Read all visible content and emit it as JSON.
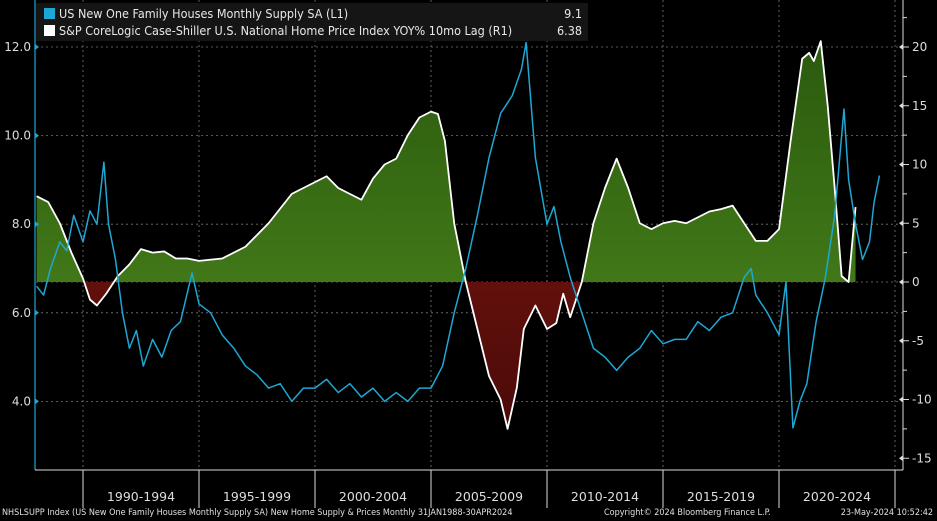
{
  "chart_data": {
    "type": "line",
    "title": "",
    "legend_placement": "top-left",
    "x_tick_labels": [
      "1990-1994",
      "1995-1999",
      "2000-2004",
      "2005-2009",
      "2010-2014",
      "2015-2019",
      "2020-2024"
    ],
    "left_axis": {
      "ticks": [
        "12.0",
        "10.0",
        "8.0",
        "6.0",
        "4.0"
      ],
      "tick_values": [
        12,
        10,
        8,
        6,
        4
      ],
      "range": [
        2.8,
        12.8
      ]
    },
    "right_axis": {
      "ticks": [
        "20",
        "15",
        "10",
        "5",
        "0",
        "-5",
        "-10",
        "-15"
      ],
      "tick_values": [
        20,
        15,
        10,
        5,
        0,
        -5,
        -10,
        -15
      ],
      "range": [
        -16,
        23
      ]
    },
    "series": [
      {
        "name": "US New One Family Houses Monthly Supply SA (L1)",
        "last_value": "9.1",
        "axis": "left",
        "color": "#1ea7d4",
        "x": [
          1988,
          1988.3,
          1988.6,
          1989,
          1989.3,
          1989.6,
          1990,
          1990.3,
          1990.6,
          1990.9,
          1991.1,
          1991.4,
          1991.7,
          1992,
          1992.3,
          1992.6,
          1993,
          1993.4,
          1993.8,
          1994.2,
          1994.7,
          1995,
          1995.5,
          1996,
          1996.5,
          1997,
          1997.5,
          1998,
          1998.5,
          1999,
          1999.5,
          2000,
          2000.5,
          2001,
          2001.5,
          2002,
          2002.5,
          2003,
          2003.5,
          2004,
          2004.5,
          2005,
          2005.5,
          2006,
          2006.5,
          2007,
          2007.5,
          2008,
          2008.5,
          2008.9,
          2009.1,
          2009.5,
          2010,
          2010.3,
          2010.6,
          2011,
          2011.5,
          2012,
          2012.5,
          2013,
          2013.5,
          2014,
          2014.5,
          2015,
          2015.5,
          2016,
          2016.5,
          2017,
          2017.5,
          2018,
          2018.5,
          2018.8,
          2019,
          2019.5,
          2020,
          2020.3,
          2020.6,
          2020.9,
          2021.2,
          2021.6,
          2022,
          2022.4,
          2022.8,
          2023,
          2023.3,
          2023.6,
          2023.9,
          2024.1,
          2024.33
        ],
        "y": [
          6.6,
          6.4,
          7.0,
          7.6,
          7.4,
          8.2,
          7.6,
          8.3,
          8.0,
          9.4,
          8.0,
          7.2,
          6.0,
          5.2,
          5.6,
          4.8,
          5.4,
          5.0,
          5.6,
          5.8,
          6.9,
          6.2,
          6.0,
          5.5,
          5.2,
          4.8,
          4.6,
          4.3,
          4.4,
          4.0,
          4.3,
          4.3,
          4.5,
          4.2,
          4.4,
          4.1,
          4.3,
          4.0,
          4.2,
          4.0,
          4.3,
          4.3,
          4.8,
          6.0,
          7.0,
          8.2,
          9.5,
          10.5,
          10.9,
          11.5,
          12.1,
          9.5,
          8.0,
          8.4,
          7.6,
          6.8,
          6.0,
          5.2,
          5.0,
          4.7,
          5.0,
          5.2,
          5.6,
          5.3,
          5.4,
          5.4,
          5.8,
          5.6,
          5.9,
          6.0,
          6.8,
          7.0,
          6.4,
          6.0,
          5.5,
          6.7,
          3.4,
          4.0,
          4.4,
          5.8,
          6.8,
          8.2,
          10.6,
          9.0,
          8.0,
          7.2,
          7.6,
          8.5,
          9.1
        ]
      },
      {
        "name": "S&P CoreLogic Case-Shiller U.S. National Home Price Index YOY% 10mo Lag (R1)",
        "last_value": "6.38",
        "axis": "right",
        "color": "#ffffff",
        "x": [
          1988,
          1988.5,
          1989,
          1989.5,
          1990,
          1990.3,
          1990.6,
          1991,
          1991.5,
          1992,
          1992.5,
          1993,
          1993.5,
          1994,
          1994.5,
          1995,
          1996,
          1997,
          1998,
          1999,
          2000,
          2000.5,
          2001,
          2001.5,
          2002,
          2002.5,
          2003,
          2003.5,
          2004,
          2004.5,
          2005,
          2005.3,
          2005.6,
          2006,
          2006.5,
          2007,
          2007.5,
          2008,
          2008.3,
          2008.7,
          2009,
          2009.5,
          2010,
          2010.4,
          2010.7,
          2011,
          2011.5,
          2012,
          2012.5,
          2013,
          2013.5,
          2014,
          2014.5,
          2015,
          2015.5,
          2016,
          2016.5,
          2017,
          2017.5,
          2018,
          2018.5,
          2019,
          2019.5,
          2020,
          2020.5,
          2021,
          2021.3,
          2021.5,
          2021.8,
          2022.1,
          2022.4,
          2022.7,
          2023,
          2023.3
        ],
        "y": [
          7.3,
          6.8,
          5.0,
          2.5,
          0.3,
          -1.5,
          -2.0,
          -1.0,
          0.5,
          1.5,
          2.8,
          2.5,
          2.6,
          2.0,
          2.0,
          1.8,
          2.0,
          3.0,
          5.0,
          7.5,
          8.5,
          9.0,
          8.0,
          7.5,
          7.0,
          8.8,
          10.0,
          10.5,
          12.5,
          14.0,
          14.5,
          14.3,
          12.0,
          5.0,
          0.0,
          -4.0,
          -8.0,
          -10.0,
          -12.5,
          -9.0,
          -4.0,
          -2.0,
          -4.0,
          -3.5,
          -1.0,
          -3.0,
          0.0,
          5.0,
          8.0,
          10.5,
          8.0,
          5.0,
          4.5,
          5.0,
          5.2,
          5.0,
          5.5,
          6.0,
          6.2,
          6.5,
          5.0,
          3.5,
          3.5,
          4.5,
          12.0,
          19.0,
          19.5,
          18.8,
          20.5,
          15.0,
          8.0,
          0.5,
          0.0,
          6.38
        ]
      }
    ]
  },
  "legend": {
    "items": [
      {
        "label": "US New One Family Houses Monthly Supply SA (L1)",
        "value": "9.1"
      },
      {
        "label": "S&P CoreLogic Case-Shiller U.S. National Home Price Index YOY% 10mo Lag (R1)",
        "value": "6.38"
      }
    ]
  },
  "footer": {
    "source": "NHSLSUPP Index (US New One Family Houses Monthly Supply SA) New Home Supply & Prices  Monthly 31JAN1988-30APR2024",
    "copyright": "Copyright© 2024 Bloomberg Finance L.P.",
    "timestamp": "23-May-2024 10:52:42"
  }
}
